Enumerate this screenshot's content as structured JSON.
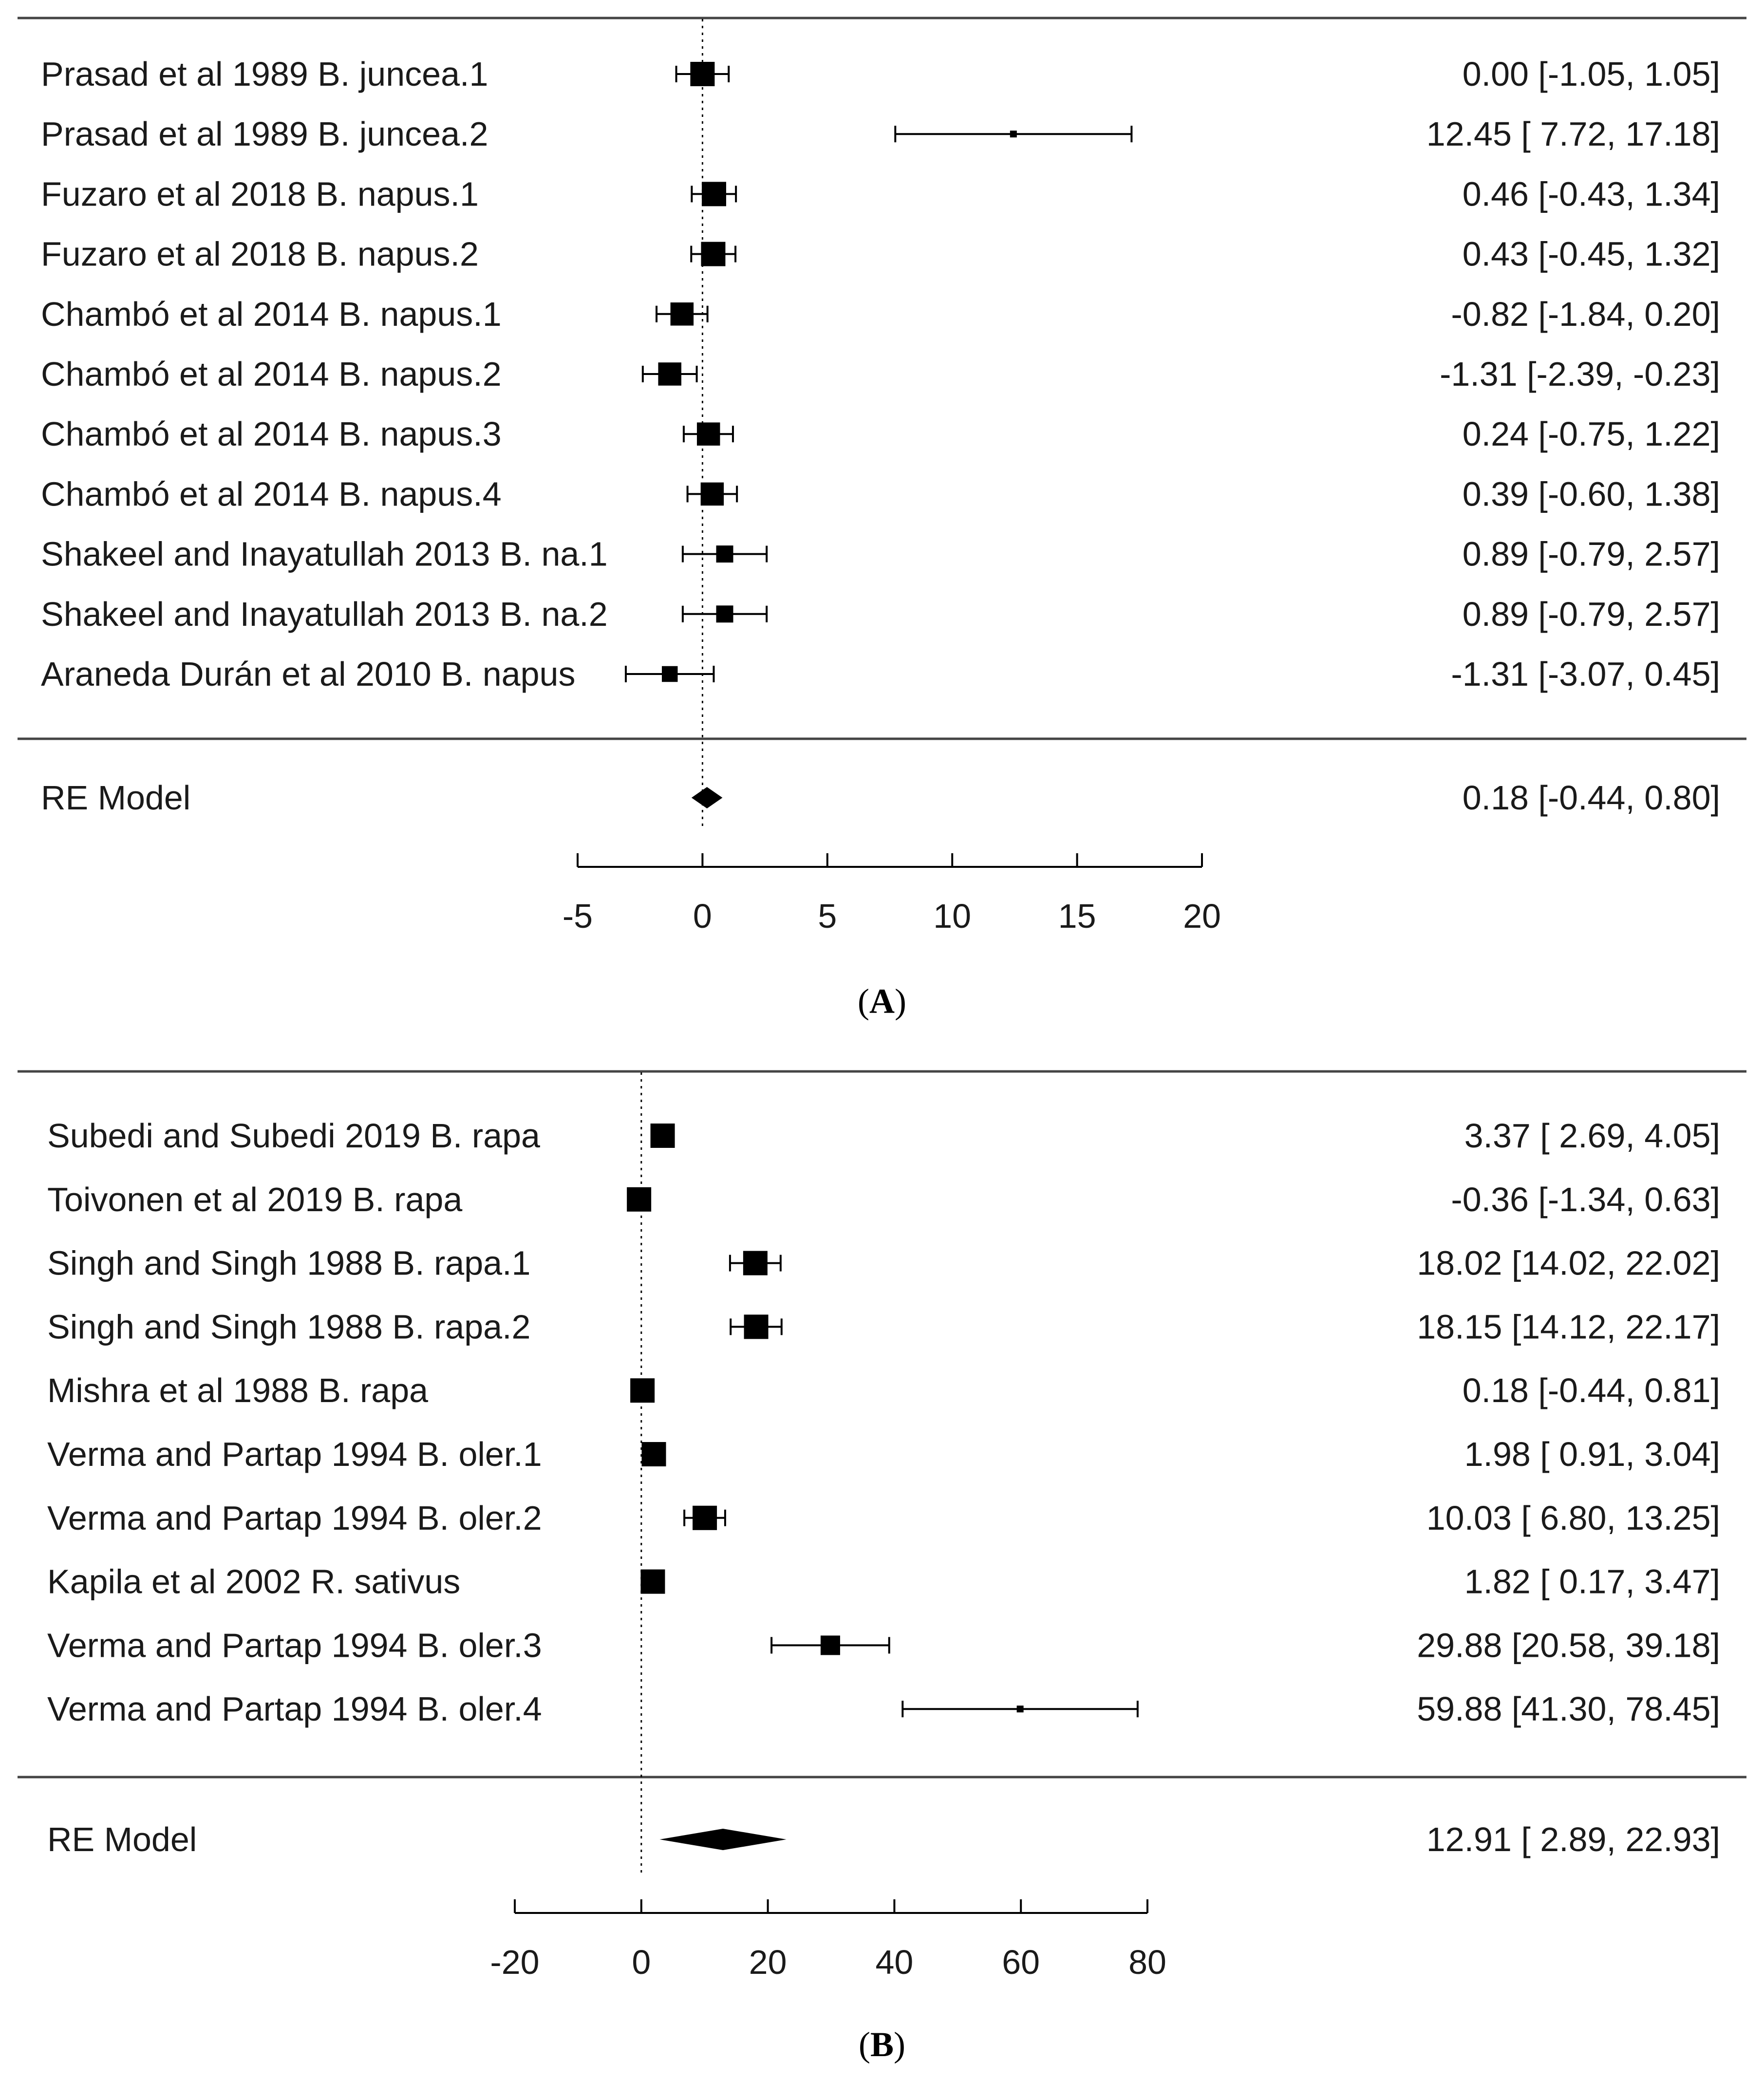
{
  "colors": {
    "ink": "#000000",
    "rule": "#444444",
    "text": "#1a1a1a"
  },
  "chart_data": [
    {
      "type": "forest",
      "panel_label": "A",
      "xlim": [
        -5,
        20
      ],
      "ticks": [
        "-5",
        "0",
        "5",
        "10",
        "15",
        "20"
      ],
      "tick_values": [
        -5,
        0,
        5,
        10,
        15,
        20
      ],
      "reference_line": 0,
      "studies": [
        {
          "label": "Prasad et al 1989 B. juncea.1",
          "estimate": 0.0,
          "lower": -1.05,
          "upper": 1.05,
          "weight": 1.0,
          "ci_text": "0.00 [-1.05,  1.05]"
        },
        {
          "label": "Prasad et al 1989 B. juncea.2",
          "estimate": 12.45,
          "lower": 7.72,
          "upper": 17.18,
          "weight": 0.15,
          "ci_text": "12.45 [ 7.72, 17.18]"
        },
        {
          "label": "Fuzaro et al 2018 B. napus.1",
          "estimate": 0.46,
          "lower": -0.43,
          "upper": 1.34,
          "weight": 1.0,
          "ci_text": "0.46 [-0.43,  1.34]"
        },
        {
          "label": "Fuzaro et al 2018 B. napus.2",
          "estimate": 0.43,
          "lower": -0.45,
          "upper": 1.32,
          "weight": 1.0,
          "ci_text": "0.43 [-0.45,  1.32]"
        },
        {
          "label": "Chambó et al 2014 B. napus.1",
          "estimate": -0.82,
          "lower": -1.84,
          "upper": 0.2,
          "weight": 0.95,
          "ci_text": "-0.82 [-1.84,  0.20]"
        },
        {
          "label": "Chambó et al 2014 B. napus.2",
          "estimate": -1.31,
          "lower": -2.39,
          "upper": -0.23,
          "weight": 0.95,
          "ci_text": "-1.31 [-2.39, -0.23]"
        },
        {
          "label": "Chambó et al 2014 B. napus.3",
          "estimate": 0.24,
          "lower": -0.75,
          "upper": 1.22,
          "weight": 0.95,
          "ci_text": "0.24 [-0.75,  1.22]"
        },
        {
          "label": "Chambó et al 2014 B. napus.4",
          "estimate": 0.39,
          "lower": -0.6,
          "upper": 1.38,
          "weight": 0.95,
          "ci_text": "0.39 [-0.60,  1.38]"
        },
        {
          "label": "Shakeel and Inayatullah 2013 B. na.1",
          "estimate": 0.89,
          "lower": -0.79,
          "upper": 2.57,
          "weight": 0.7,
          "ci_text": "0.89 [-0.79,  2.57]"
        },
        {
          "label": "Shakeel and Inayatullah 2013 B. na.2",
          "estimate": 0.89,
          "lower": -0.79,
          "upper": 2.57,
          "weight": 0.7,
          "ci_text": "0.89 [-0.79,  2.57]"
        },
        {
          "label": "Araneda Durán et al 2010 B. napus",
          "estimate": -1.31,
          "lower": -3.07,
          "upper": 0.45,
          "weight": 0.65,
          "ci_text": "-1.31 [-3.07,  0.45]"
        }
      ],
      "summary": {
        "label": "RE Model",
        "estimate": 0.18,
        "lower": -0.44,
        "upper": 0.8,
        "ci_text": "0.18 [-0.44,  0.80]"
      }
    },
    {
      "type": "forest",
      "panel_label": "B",
      "xlim": [
        -20,
        80
      ],
      "ticks": [
        "-20",
        "0",
        "20",
        "40",
        "60",
        "80"
      ],
      "tick_values": [
        -20,
        0,
        20,
        40,
        60,
        80
      ],
      "reference_line": 0,
      "studies": [
        {
          "label": "Subedi and Subedi 2019 B. rapa",
          "estimate": 3.37,
          "lower": 2.69,
          "upper": 4.05,
          "weight": 1.0,
          "ci_text": "3.37 [ 2.69,  4.05]"
        },
        {
          "label": "Toivonen et al 2019 B. rapa",
          "estimate": -0.36,
          "lower": -1.34,
          "upper": 0.63,
          "weight": 1.0,
          "ci_text": "-0.36 [-1.34,  0.63]"
        },
        {
          "label": "Singh and Singh 1988 B. rapa.1",
          "estimate": 18.02,
          "lower": 14.02,
          "upper": 22.02,
          "weight": 1.0,
          "ci_text": "18.02 [14.02, 22.02]"
        },
        {
          "label": "Singh and Singh 1988 B. rapa.2",
          "estimate": 18.15,
          "lower": 14.12,
          "upper": 22.17,
          "weight": 1.0,
          "ci_text": "18.15 [14.12, 22.17]"
        },
        {
          "label": "Mishra et al 1988 B. rapa",
          "estimate": 0.18,
          "lower": -0.44,
          "upper": 0.81,
          "weight": 1.0,
          "ci_text": "0.18 [-0.44,  0.81]"
        },
        {
          "label": "Verma and Partap 1994 B. oler.1",
          "estimate": 1.98,
          "lower": 0.91,
          "upper": 3.04,
          "weight": 1.0,
          "ci_text": "1.98 [ 0.91,  3.04]"
        },
        {
          "label": "Verma and Partap 1994 B. oler.2",
          "estimate": 10.03,
          "lower": 6.8,
          "upper": 13.25,
          "weight": 1.0,
          "ci_text": "10.03 [ 6.80, 13.25]"
        },
        {
          "label": "Kapila et al 2002 R. sativus",
          "estimate": 1.82,
          "lower": 0.17,
          "upper": 3.47,
          "weight": 1.0,
          "ci_text": "1.82 [ 0.17,  3.47]"
        },
        {
          "label": "Verma and Partap 1994 B. oler.3",
          "estimate": 29.88,
          "lower": 20.58,
          "upper": 39.18,
          "weight": 0.8,
          "ci_text": "29.88 [20.58, 39.18]"
        },
        {
          "label": "Verma and Partap 1994 B. oler.4",
          "estimate": 59.88,
          "lower": 41.3,
          "upper": 78.45,
          "weight": 0.15,
          "ci_text": "59.88 [41.30, 78.45]"
        }
      ],
      "summary": {
        "label": "RE Model",
        "estimate": 12.91,
        "lower": 2.89,
        "upper": 22.93,
        "ci_text": "12.91 [ 2.89, 22.93]"
      }
    }
  ]
}
